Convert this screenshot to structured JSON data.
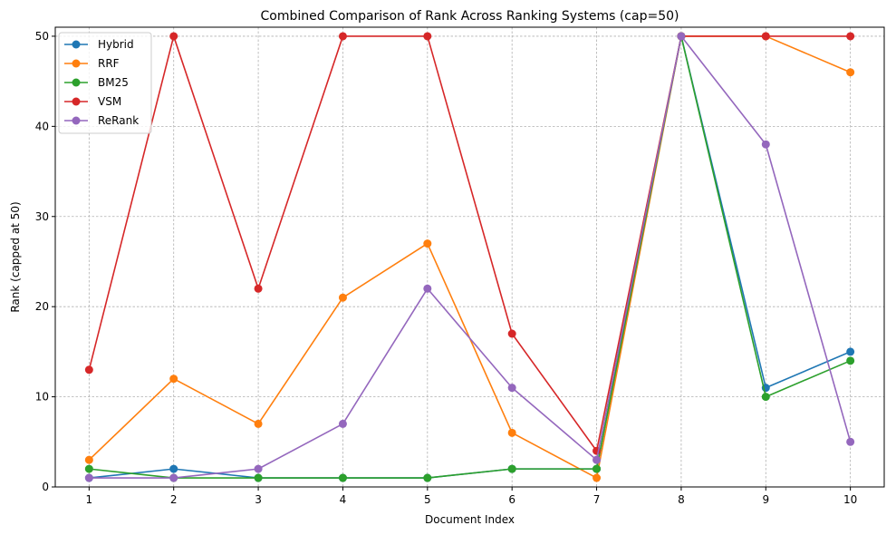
{
  "chart_data": {
    "type": "line",
    "title": "Combined Comparison of Rank Across Ranking Systems (cap=50)",
    "xlabel": "Document Index",
    "ylabel": "Rank (capped at 50)",
    "x": [
      1,
      2,
      3,
      4,
      5,
      6,
      7,
      8,
      9,
      10
    ],
    "xlim": [
      0.6,
      10.4
    ],
    "ylim": [
      0,
      51
    ],
    "xticks": [
      1,
      2,
      3,
      4,
      5,
      6,
      7,
      8,
      9,
      10
    ],
    "yticks": [
      0,
      10,
      20,
      30,
      40,
      50
    ],
    "grid": true,
    "legend_position": "top-left",
    "series": [
      {
        "name": "Hybrid",
        "color": "#1f77b4",
        "values": [
          1,
          2,
          1,
          1,
          1,
          2,
          2,
          50,
          11,
          15
        ]
      },
      {
        "name": "RRF",
        "color": "#ff7f0e",
        "values": [
          3,
          12,
          7,
          21,
          27,
          6,
          1,
          50,
          50,
          46
        ]
      },
      {
        "name": "BM25",
        "color": "#2ca02c",
        "values": [
          2,
          1,
          1,
          1,
          1,
          2,
          2,
          50,
          10,
          14
        ]
      },
      {
        "name": "VSM",
        "color": "#d62728",
        "values": [
          13,
          50,
          22,
          50,
          50,
          17,
          4,
          50,
          50,
          50
        ]
      },
      {
        "name": "ReRank",
        "color": "#9467bd",
        "values": [
          1,
          1,
          2,
          7,
          22,
          11,
          3,
          50,
          38,
          5
        ]
      }
    ]
  }
}
